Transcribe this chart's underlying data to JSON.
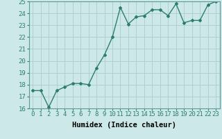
{
  "xlabel": "Humidex (Indice chaleur)",
  "x": [
    0,
    1,
    2,
    3,
    4,
    5,
    6,
    7,
    8,
    9,
    10,
    11,
    12,
    13,
    14,
    15,
    16,
    17,
    18,
    19,
    20,
    21,
    22,
    23
  ],
  "y": [
    17.5,
    17.5,
    16.1,
    17.5,
    17.8,
    18.1,
    18.1,
    18.0,
    19.4,
    20.5,
    22.0,
    24.5,
    23.1,
    23.7,
    23.8,
    24.3,
    24.3,
    23.8,
    24.8,
    23.2,
    23.4,
    23.4,
    24.7,
    25.0
  ],
  "line_color": "#2d7d6d",
  "marker": "D",
  "marker_size": 2.0,
  "line_width": 1.0,
  "bg_color": "#cde8e8",
  "grid_color": "#b0d0d0",
  "ylim": [
    16,
    25
  ],
  "yticks": [
    16,
    17,
    18,
    19,
    20,
    21,
    22,
    23,
    24,
    25
  ],
  "xticks": [
    0,
    1,
    2,
    3,
    4,
    5,
    6,
    7,
    8,
    9,
    10,
    11,
    12,
    13,
    14,
    15,
    16,
    17,
    18,
    19,
    20,
    21,
    22,
    23
  ],
  "xlabel_fontsize": 7.5,
  "tick_fontsize": 6.5
}
